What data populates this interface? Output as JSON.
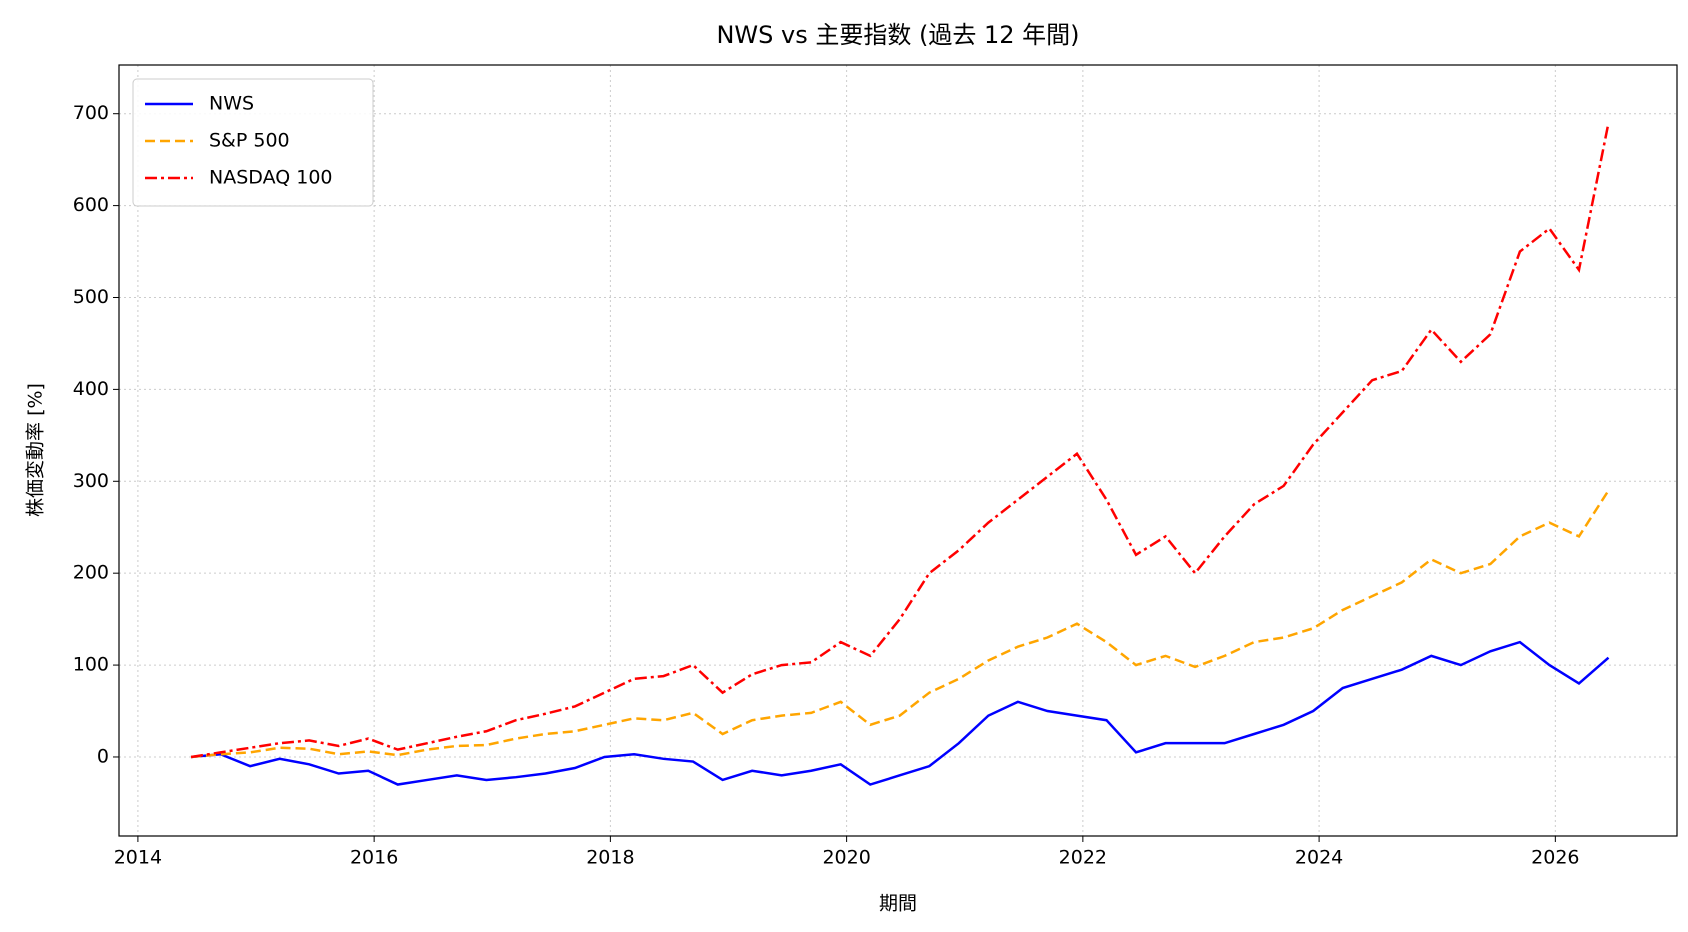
{
  "chart_data": {
    "type": "line",
    "title": "NWS vs 主要指数 (過去 12 年間)",
    "x_label": "期間",
    "y_label": "株価変動率 [%]",
    "x": [
      2014.45,
      2014.7,
      2014.95,
      2015.2,
      2015.45,
      2015.7,
      2015.95,
      2016.2,
      2016.45,
      2016.7,
      2016.95,
      2017.2,
      2017.45,
      2017.7,
      2017.95,
      2018.2,
      2018.45,
      2018.7,
      2018.95,
      2019.2,
      2019.45,
      2019.7,
      2019.95,
      2020.2,
      2020.45,
      2020.7,
      2020.95,
      2021.2,
      2021.45,
      2021.7,
      2021.95,
      2022.2,
      2022.45,
      2022.7,
      2022.95,
      2023.2,
      2023.45,
      2023.7,
      2023.95,
      2024.2,
      2024.45,
      2024.7,
      2024.95,
      2025.2,
      2025.45,
      2025.7,
      2025.95,
      2026.2,
      2026.45
    ],
    "series": [
      {
        "name": "NWS",
        "color": "#0000ff",
        "dash": "solid",
        "values": [
          0,
          3,
          -10,
          -2,
          -8,
          -18,
          -15,
          -30,
          -25,
          -20,
          -25,
          -22,
          -18,
          -12,
          0,
          3,
          -2,
          -5,
          -25,
          -15,
          -20,
          -15,
          -8,
          -30,
          -20,
          -10,
          15,
          45,
          60,
          50,
          45,
          40,
          5,
          15,
          15,
          15,
          25,
          35,
          50,
          75,
          85,
          95,
          110,
          100,
          115,
          125,
          100,
          80,
          108
        ]
      },
      {
        "name": "S&P 500",
        "color": "#ffa500",
        "dash": "dashed",
        "values": [
          0,
          3,
          5,
          10,
          9,
          3,
          6,
          2,
          8,
          12,
          13,
          20,
          25,
          28,
          35,
          42,
          40,
          48,
          25,
          40,
          45,
          48,
          60,
          35,
          45,
          70,
          85,
          105,
          120,
          130,
          145,
          125,
          100,
          110,
          98,
          110,
          125,
          130,
          140,
          160,
          175,
          190,
          215,
          200,
          210,
          240,
          255,
          240,
          290
        ]
      },
      {
        "name": "NASDAQ 100",
        "color": "#ff0000",
        "dash": "dashdot",
        "values": [
          0,
          5,
          10,
          15,
          18,
          12,
          20,
          8,
          15,
          22,
          28,
          40,
          47,
          55,
          70,
          85,
          88,
          100,
          70,
          90,
          100,
          103,
          125,
          110,
          150,
          200,
          225,
          255,
          280,
          305,
          330,
          280,
          220,
          240,
          200,
          240,
          275,
          295,
          340,
          375,
          410,
          420,
          465,
          430,
          460,
          550,
          575,
          530,
          690
        ]
      }
    ],
    "xlim": [
      2013.84,
      2027.03
    ],
    "xticks": [
      2014,
      2016,
      2018,
      2020,
      2022,
      2024,
      2026
    ],
    "ylim": [
      -86,
      753
    ],
    "yticks": [
      0,
      100,
      200,
      300,
      400,
      500,
      600,
      700
    ],
    "grid": true,
    "legend": "upper left"
  }
}
